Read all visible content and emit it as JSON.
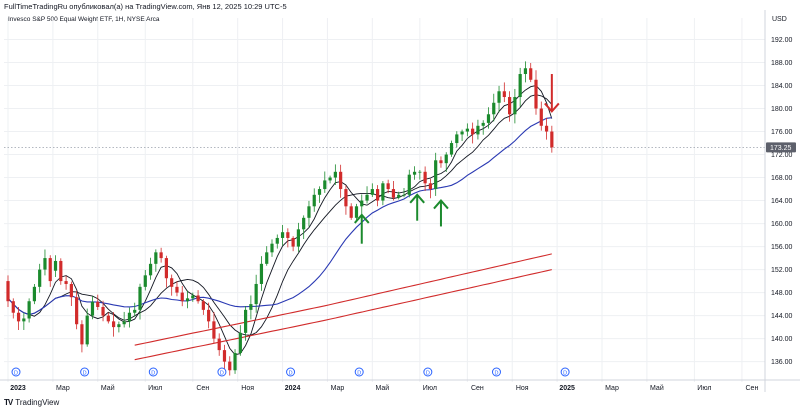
{
  "header": {
    "title": "FullTimeTradingRu опубликовал(а) на TradingView.com, Янв 12, 2025 10:29 UTC-5"
  },
  "footer": {
    "brand": "TradingView"
  },
  "chart_data": {
    "type": "candlestick",
    "title": "Invesco S&P 500 Equal Weight ETF, 1Н, NYSE Arca",
    "currency": "USD",
    "ylim": [
      133.5,
      194
    ],
    "y_ticks": [
      136,
      140,
      144,
      148,
      152,
      156,
      160,
      164,
      168,
      172,
      176,
      180,
      184,
      188,
      192
    ],
    "last_price_label": "173.25",
    "last_price": 173.25,
    "x_labels": [
      {
        "label": "2023",
        "bold": true,
        "week": 0
      },
      {
        "label": "Мар",
        "bold": false,
        "week": 8.5
      },
      {
        "label": "Май",
        "bold": false,
        "week": 17
      },
      {
        "label": "Июл",
        "bold": false,
        "week": 26
      },
      {
        "label": "Сен",
        "bold": false,
        "week": 35
      },
      {
        "label": "Ноя",
        "bold": false,
        "week": 43.5
      },
      {
        "label": "2024",
        "bold": true,
        "week": 52
      },
      {
        "label": "Мар",
        "bold": false,
        "week": 60.5
      },
      {
        "label": "Май",
        "bold": false,
        "week": 69
      },
      {
        "label": "Июл",
        "bold": false,
        "week": 78
      },
      {
        "label": "Сен",
        "bold": false,
        "week": 87
      },
      {
        "label": "Ноя",
        "bold": false,
        "week": 95.5
      },
      {
        "label": "2025",
        "bold": true,
        "week": 104
      },
      {
        "label": "Мар",
        "bold": false,
        "week": 112.5
      },
      {
        "label": "Май",
        "bold": false,
        "week": 121
      },
      {
        "label": "Июл",
        "bold": false,
        "week": 130
      },
      {
        "label": "Сен",
        "bold": false,
        "week": 139
      }
    ],
    "dividend_marker_label": "D",
    "dividend_weeks": [
      0,
      13,
      26,
      39,
      52,
      65,
      78,
      91,
      104
    ],
    "closes": [
      147.0,
      145.0,
      143.2,
      142.8,
      143.0,
      145.5,
      148.2,
      150.0,
      151.8,
      153.5,
      150.0,
      149.5,
      147.2,
      142.5,
      139.0,
      144.0,
      146.4,
      145.5,
      144.0,
      143.0,
      142.0,
      142.5,
      143.0,
      144.5,
      145.0,
      149.0,
      151.0,
      153.0,
      155.0,
      154.0,
      150.5,
      149.0,
      148.0,
      146.5,
      147.0,
      147.5,
      146.5,
      145.0,
      143.0,
      140.0,
      138.0,
      136.0,
      134.5,
      137.5,
      141.0,
      145.0,
      146.0,
      149.5,
      153.0,
      155.0,
      156.5,
      157.5,
      158.5,
      157.5,
      156.0,
      159.0,
      161.0,
      163.0,
      165.0,
      166.0,
      167.5,
      168.0,
      169.0,
      166.0,
      163.0,
      161.0,
      163.0,
      164.0,
      165.0,
      166.0,
      164.0,
      167.0,
      166.0,
      164.5,
      165.0,
      165.0,
      168.5,
      169.0,
      169.0,
      167.0,
      166.0,
      171.0,
      170.5,
      172.0,
      174.0,
      175.5,
      176.0,
      176.5,
      175.5,
      177.0,
      177.5,
      179.0,
      181.0,
      183.0,
      182.0,
      179.0,
      182.0,
      186.0,
      187.0,
      185.0,
      180.0,
      177.0,
      176.0,
      173.25
    ],
    "candles_hand": [
      {
        "o": 150.0,
        "h": 151.0,
        "l": 145.5,
        "c": 146.5
      },
      {
        "o": 146.5,
        "h": 147.0,
        "l": 143.5,
        "c": 144.5
      },
      {
        "o": 144.5,
        "h": 145.5,
        "l": 141.5,
        "c": 143.0
      },
      {
        "o": 143.0,
        "h": 144.5,
        "l": 141.5,
        "c": 143.5
      },
      {
        "o": 143.5,
        "h": 147.0,
        "l": 142.8,
        "c": 146.5
      },
      {
        "o": 146.5,
        "h": 149.5,
        "l": 146.0,
        "c": 149.0
      },
      {
        "o": 149.0,
        "h": 153.0,
        "l": 148.0,
        "c": 152.0
      },
      {
        "o": 152.0,
        "h": 155.5,
        "l": 151.0,
        "c": 154.0
      },
      {
        "o": 154.0,
        "h": 154.5,
        "l": 149.0,
        "c": 150.0
      }
    ],
    "series": [
      {
        "name": "",
        "kind": "ma_fast",
        "color": "#131722"
      },
      {
        "name": "",
        "kind": "ma_mid",
        "color": "#131722"
      },
      {
        "name": "",
        "kind": "ma_blue",
        "color": "#2a39b3"
      },
      {
        "name": "",
        "kind": "ma_red1",
        "color": "#d12b2b"
      },
      {
        "name": "",
        "kind": "ma_red2",
        "color": "#d12b2b"
      }
    ],
    "annotations": [
      {
        "type": "arrow-up",
        "color": "#1b8a2d",
        "week": 67,
        "y_from": 156.5,
        "y_to": 161.5
      },
      {
        "type": "arrow-up",
        "color": "#1b8a2d",
        "week": 77.5,
        "y_from": 160.5,
        "y_to": 165.0
      },
      {
        "type": "arrow-up",
        "color": "#1b8a2d",
        "week": 82,
        "y_from": 159.5,
        "y_to": 164.0
      },
      {
        "type": "arrow-down",
        "color": "#d12b2b",
        "week": 103,
        "y_from": 186.0,
        "y_to": 179.5
      }
    ],
    "colors": {
      "up": "#1b8a2d",
      "down": "#d12b2b",
      "grid": "#eef0f3",
      "axis_text": "#131722"
    }
  }
}
